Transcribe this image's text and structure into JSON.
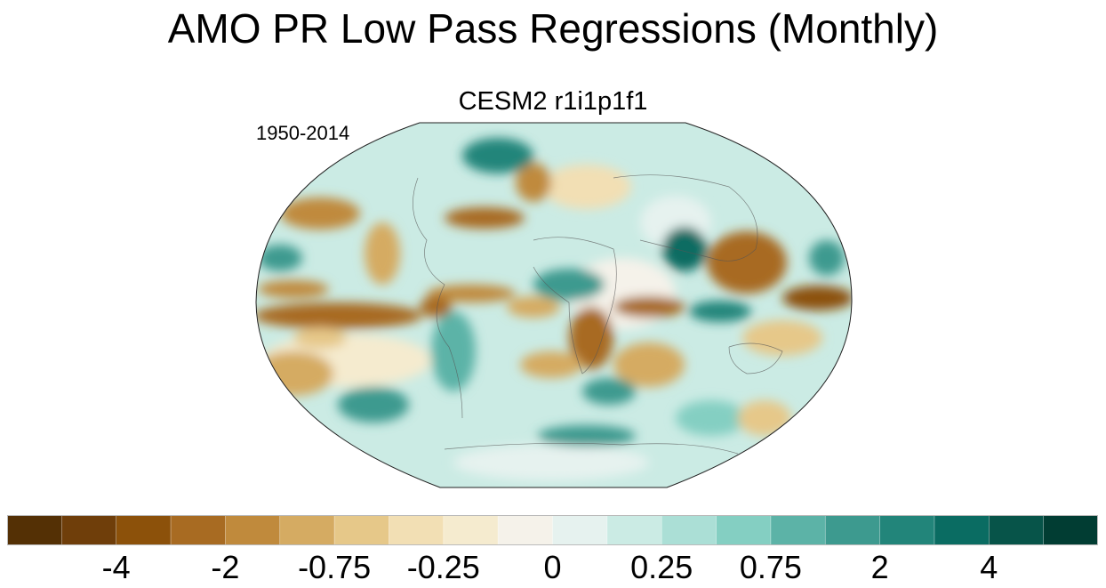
{
  "title": "AMO PR Low Pass Regressions (Monthly)",
  "subtitle": "CESM2 r1i1p1f1",
  "period": "1950-2014",
  "colorbar": {
    "colors": [
      "#543005",
      "#6f3e0a",
      "#8c510a",
      "#a86b22",
      "#c08a3c",
      "#d5ab62",
      "#e6c889",
      "#f2dfb4",
      "#f5ebcf",
      "#f5f2ea",
      "#e6f2ef",
      "#cbebe4",
      "#abdfd6",
      "#84cfc2",
      "#5cb3a7",
      "#3d9a8f",
      "#22857a",
      "#0a6c62",
      "#075449",
      "#013d33"
    ],
    "labels": [
      {
        "text": "-4",
        "boundary": 2
      },
      {
        "text": "-2",
        "boundary": 4
      },
      {
        "text": "-0.75",
        "boundary": 6
      },
      {
        "text": "-0.25",
        "boundary": 8
      },
      {
        "text": "0",
        "boundary": 10
      },
      {
        "text": "0.25",
        "boundary": 12
      },
      {
        "text": "0.75",
        "boundary": 14
      },
      {
        "text": "2",
        "boundary": 16
      },
      {
        "text": "4",
        "boundary": 18
      }
    ]
  }
}
